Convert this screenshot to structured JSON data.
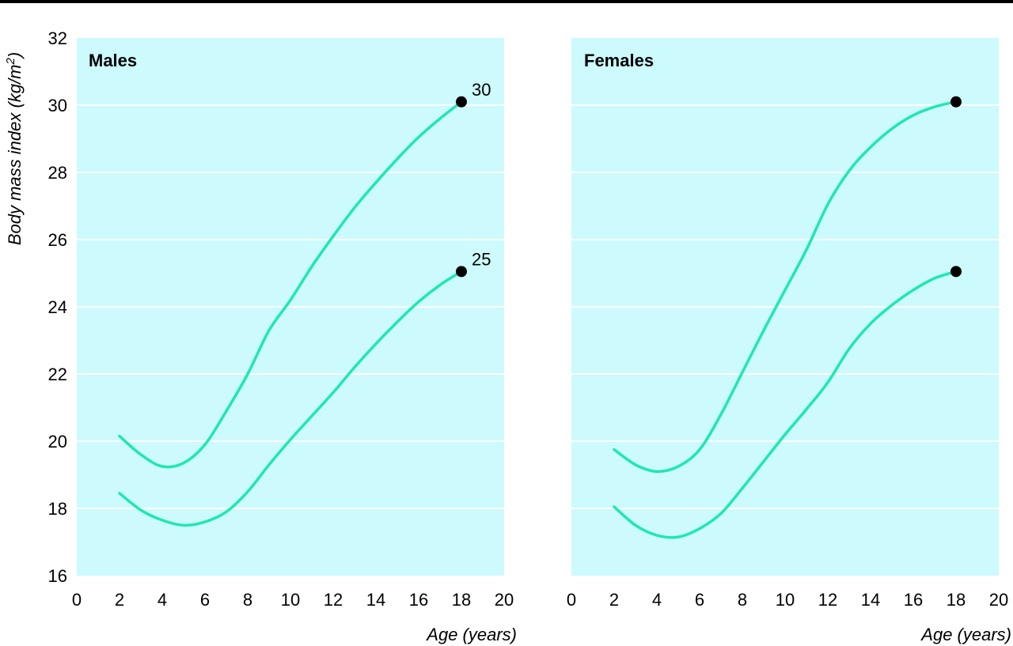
{
  "chart_data": [
    {
      "type": "line",
      "title": "Males",
      "xlabel": "Age (years)",
      "ylabel_main": "Body mass index (kg/m",
      "ylabel_sup": "2",
      "ylabel_tail": ")",
      "xlim": [
        0,
        20
      ],
      "ylim": [
        16,
        32
      ],
      "xticks": [
        0,
        2,
        4,
        6,
        8,
        10,
        12,
        14,
        16,
        18,
        20
      ],
      "yticks": [
        16,
        18,
        20,
        22,
        24,
        26,
        28,
        30,
        32
      ],
      "grid": true,
      "series": [
        {
          "endpoint_label": "30",
          "x": [
            2,
            3,
            4,
            5,
            6,
            7,
            8,
            9,
            10,
            11,
            12,
            13,
            14,
            15,
            16,
            17,
            18
          ],
          "y": [
            20.15,
            19.6,
            19.25,
            19.35,
            19.9,
            20.9,
            22.0,
            23.3,
            24.2,
            25.2,
            26.1,
            26.95,
            27.7,
            28.4,
            29.05,
            29.6,
            30.1
          ]
        },
        {
          "endpoint_label": "25",
          "x": [
            2,
            3,
            4,
            5,
            6,
            7,
            8,
            9,
            10,
            11,
            12,
            13,
            14,
            15,
            16,
            17,
            18
          ],
          "y": [
            18.45,
            17.95,
            17.65,
            17.5,
            17.6,
            17.9,
            18.5,
            19.3,
            20.05,
            20.75,
            21.45,
            22.2,
            22.9,
            23.55,
            24.15,
            24.65,
            25.05
          ]
        }
      ]
    },
    {
      "type": "line",
      "title": "Females",
      "xlabel": "Age (years)",
      "xlim": [
        0,
        20
      ],
      "ylim": [
        16,
        32
      ],
      "xticks": [
        0,
        2,
        4,
        6,
        8,
        10,
        12,
        14,
        16,
        18,
        20
      ],
      "grid": true,
      "series": [
        {
          "x": [
            2,
            3,
            4,
            5,
            6,
            7,
            8,
            9,
            10,
            11,
            12,
            13,
            14,
            15,
            16,
            17,
            18
          ],
          "y": [
            19.75,
            19.3,
            19.1,
            19.25,
            19.75,
            20.8,
            22.05,
            23.3,
            24.5,
            25.7,
            27.05,
            28.05,
            28.75,
            29.3,
            29.7,
            29.95,
            30.1
          ]
        },
        {
          "x": [
            2,
            3,
            4,
            5,
            6,
            7,
            8,
            9,
            10,
            11,
            12,
            13,
            14,
            15,
            16,
            17,
            18
          ],
          "y": [
            18.05,
            17.5,
            17.2,
            17.15,
            17.4,
            17.85,
            18.6,
            19.4,
            20.2,
            20.95,
            21.75,
            22.75,
            23.5,
            24.05,
            24.5,
            24.85,
            25.05
          ]
        }
      ]
    }
  ]
}
